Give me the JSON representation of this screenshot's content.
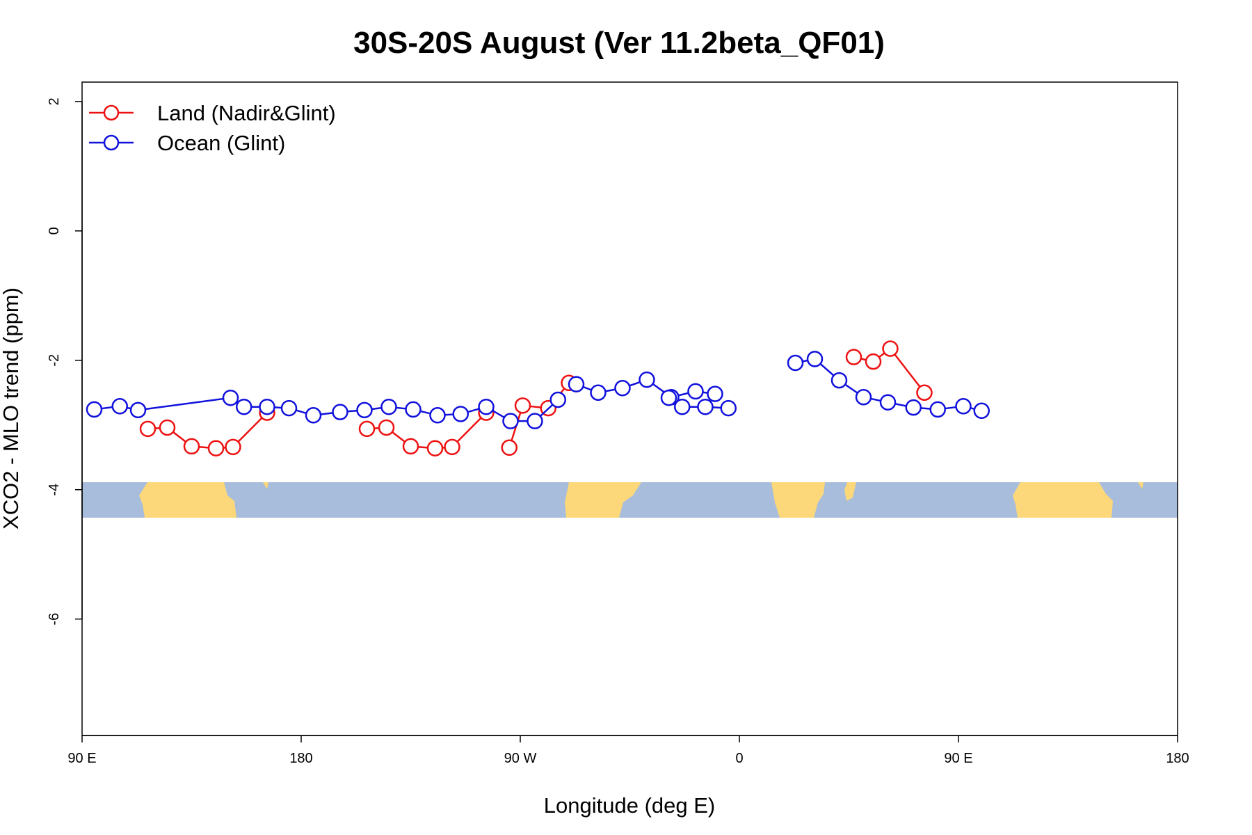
{
  "chart_data": {
    "type": "line",
    "title": "30S-20S August (Ver 11.2beta_QF01)",
    "xlabel": "Longitude (deg E)",
    "ylabel": "XCO2 - MLO trend (ppm)",
    "xlim": [
      90,
      540
    ],
    "ylim": [
      -7.8,
      2.3
    ],
    "x_ticks": [
      {
        "value": 90,
        "label": "90 E"
      },
      {
        "value": 180,
        "label": "180"
      },
      {
        "value": 270,
        "label": "90 W"
      },
      {
        "value": 360,
        "label": "0"
      },
      {
        "value": 450,
        "label": "90 E"
      },
      {
        "value": 540,
        "label": "180"
      }
    ],
    "y_ticks": [
      {
        "value": 2,
        "label": "2"
      },
      {
        "value": 0,
        "label": "0"
      },
      {
        "value": -2,
        "label": "-2"
      },
      {
        "value": -4,
        "label": "-4"
      },
      {
        "value": -6,
        "label": "-6"
      }
    ],
    "legend": {
      "position": "top-left",
      "entries": [
        {
          "label": "Land (Nadir&Glint)",
          "color": "#ee1111"
        },
        {
          "label": "Ocean (Glint)",
          "color": "#1111dd"
        }
      ]
    },
    "series": [
      {
        "name": "Land (Nadir&Glint)",
        "color": "#ee1111",
        "segments": [
          [
            [
              117,
              -3.06
            ],
            [
              125,
              -3.04
            ],
            [
              135,
              -3.33
            ],
            [
              145,
              -3.36
            ],
            [
              152,
              -3.34
            ],
            [
              166,
              -2.81
            ]
          ],
          [
            [
              265.5,
              -3.35
            ],
            [
              271,
              -2.7
            ],
            [
              281.5,
              -2.74
            ],
            [
              290,
              -2.35
            ]
          ],
          [
            [
              407,
              -1.95
            ],
            [
              415,
              -2.02
            ],
            [
              422,
              -1.82
            ],
            [
              436,
              -2.5
            ]
          ],
          [
            [
              207,
              -3.06
            ],
            [
              215,
              -3.04
            ],
            [
              225,
              -3.33
            ],
            [
              235,
              -3.36
            ],
            [
              242,
              -3.34
            ],
            [
              256,
              -2.81
            ]
          ]
        ]
      },
      {
        "name": "Ocean (Glint)",
        "color": "#1111dd",
        "segments": [
          [
            [
              95,
              -2.76
            ],
            [
              105.5,
              -2.71
            ],
            [
              113,
              -2.77
            ],
            [
              151,
              -2.58
            ],
            [
              156.5,
              -2.72
            ],
            [
              166,
              -2.72
            ],
            [
              175,
              -2.74
            ],
            [
              185,
              -2.85
            ],
            [
              196,
              -2.8
            ],
            [
              206,
              -2.77
            ],
            [
              216,
              -2.72
            ],
            [
              226,
              -2.76
            ],
            [
              236,
              -2.85
            ],
            [
              245.5,
              -2.83
            ],
            [
              256,
              -2.72
            ],
            [
              266,
              -2.94
            ],
            [
              276,
              -2.94
            ],
            [
              285.5,
              -2.61
            ]
          ],
          [
            [
              293,
              -2.37
            ],
            [
              302,
              -2.5
            ],
            [
              312,
              -2.43
            ],
            [
              322,
              -2.3
            ],
            [
              332,
              -2.57
            ],
            [
              342,
              -2.48
            ],
            [
              350,
              -2.52
            ]
          ],
          [
            [
              383,
              -2.04
            ],
            [
              391,
              -1.98
            ],
            [
              401,
              -2.31
            ],
            [
              411,
              -2.57
            ],
            [
              421,
              -2.65
            ],
            [
              431.5,
              -2.73
            ],
            [
              441.5,
              -2.76
            ],
            [
              452,
              -2.71
            ],
            [
              459.5,
              -2.78
            ]
          ],
          [
            [
              331,
              -2.58
            ],
            [
              336.5,
              -2.72
            ],
            [
              346,
              -2.72
            ],
            [
              355.5,
              -2.74
            ]
          ]
        ]
      }
    ],
    "colors": {
      "ocean": "#a7bddb",
      "land": "#fcd87a",
      "frame": "#000000"
    }
  }
}
